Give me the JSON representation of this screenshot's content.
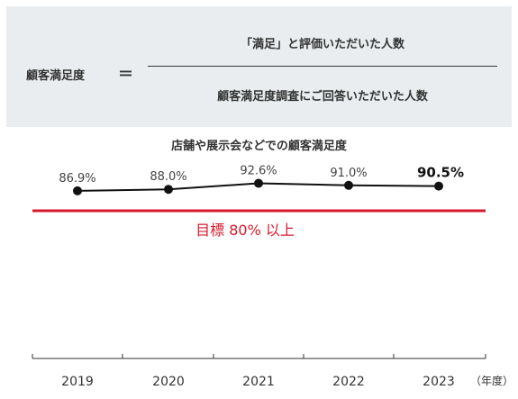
{
  "formula": {
    "label": "顧客満足度",
    "equals": "＝",
    "numerator": "「満足」と評価いただいた人数",
    "denominator": "顧客満足度調査にご回答いただいた人数"
  },
  "chart_data": {
    "type": "line",
    "title": "店舗や展示会などでの顧客満足度",
    "categories": [
      "2019",
      "2020",
      "2021",
      "2022",
      "2023"
    ],
    "series": [
      {
        "values": [
          86.9,
          88.0,
          92.6,
          91.0,
          90.5
        ]
      }
    ],
    "data_labels": [
      "86.9%",
      "88.0%",
      "92.6%",
      "91.0%",
      "90.5%"
    ],
    "target": {
      "value": 80,
      "label": "目標 80% 以上"
    },
    "x_unit": "（年度）",
    "colors": {
      "line": "#111111",
      "target": "#d7192e",
      "axis": "#333333"
    }
  }
}
